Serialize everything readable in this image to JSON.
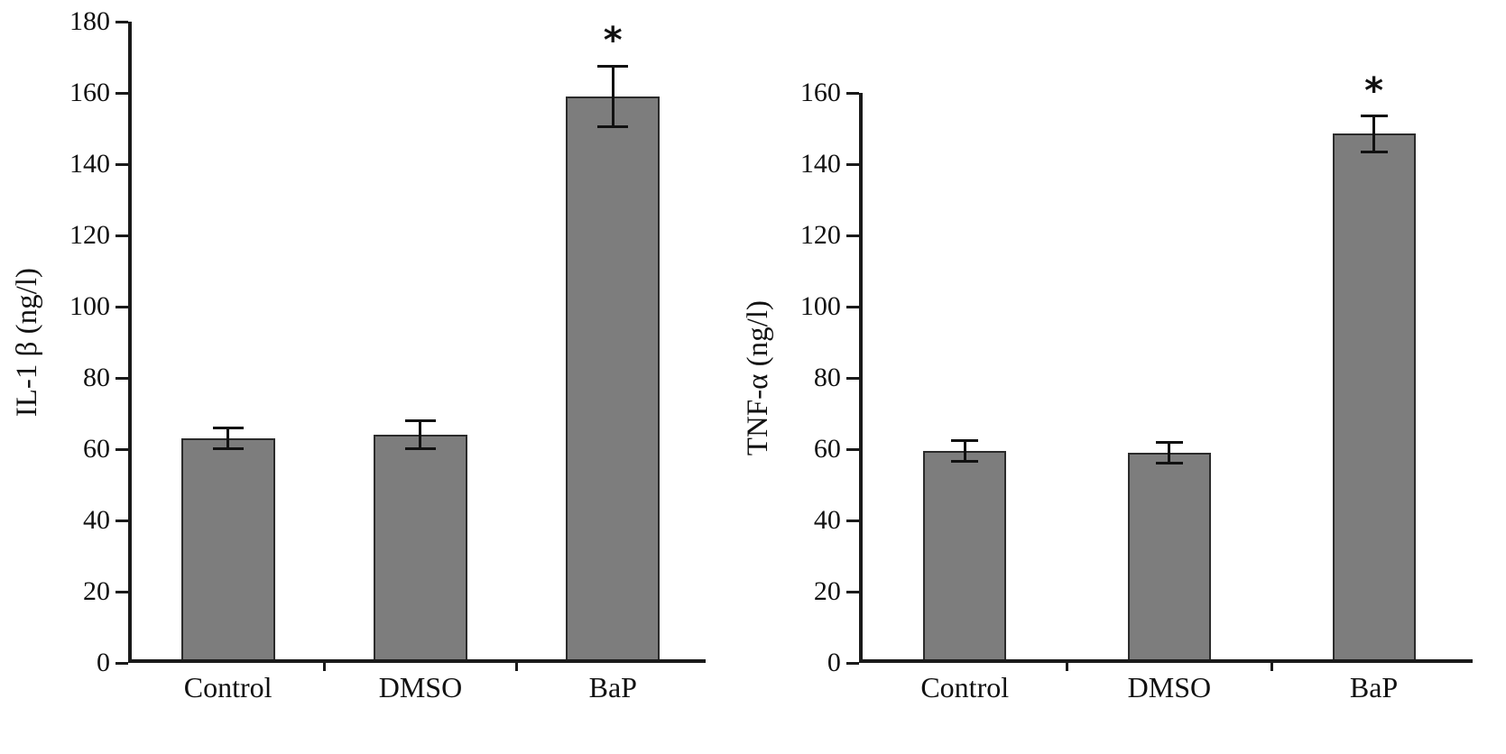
{
  "figure": {
    "background": "#ffffff",
    "bar_fill": "#7d7d7d",
    "bar_border": "#2b2b2b",
    "axis_color": "#1a1a1a",
    "text_color": "#111111",
    "error_bar_color": "#111111"
  },
  "chart_data": [
    {
      "type": "bar",
      "title": "",
      "xlabel": "",
      "ylabel": "IL-1 β (ng/l)",
      "categories": [
        "Control",
        "DMSO",
        "BaP"
      ],
      "values": [
        62,
        63,
        158
      ],
      "errors": [
        3,
        4,
        8.5
      ],
      "ylim": [
        0,
        180
      ],
      "yticks": [
        0,
        20,
        40,
        60,
        80,
        100,
        120,
        140,
        160,
        180
      ],
      "grid": false,
      "legend": false,
      "annotations": [
        {
          "category": "BaP",
          "marker": "*"
        }
      ]
    },
    {
      "type": "bar",
      "title": "",
      "xlabel": "",
      "ylabel": "TNF-α (ng/l)",
      "categories": [
        "Control",
        "DMSO",
        "BaP"
      ],
      "values": [
        58.5,
        58,
        147.5
      ],
      "errors": [
        3,
        3,
        5
      ],
      "ylim": [
        0,
        160
      ],
      "yticks": [
        0,
        20,
        40,
        60,
        80,
        100,
        120,
        140,
        160
      ],
      "grid": false,
      "legend": false,
      "annotations": [
        {
          "category": "BaP",
          "marker": "*"
        }
      ]
    }
  ]
}
